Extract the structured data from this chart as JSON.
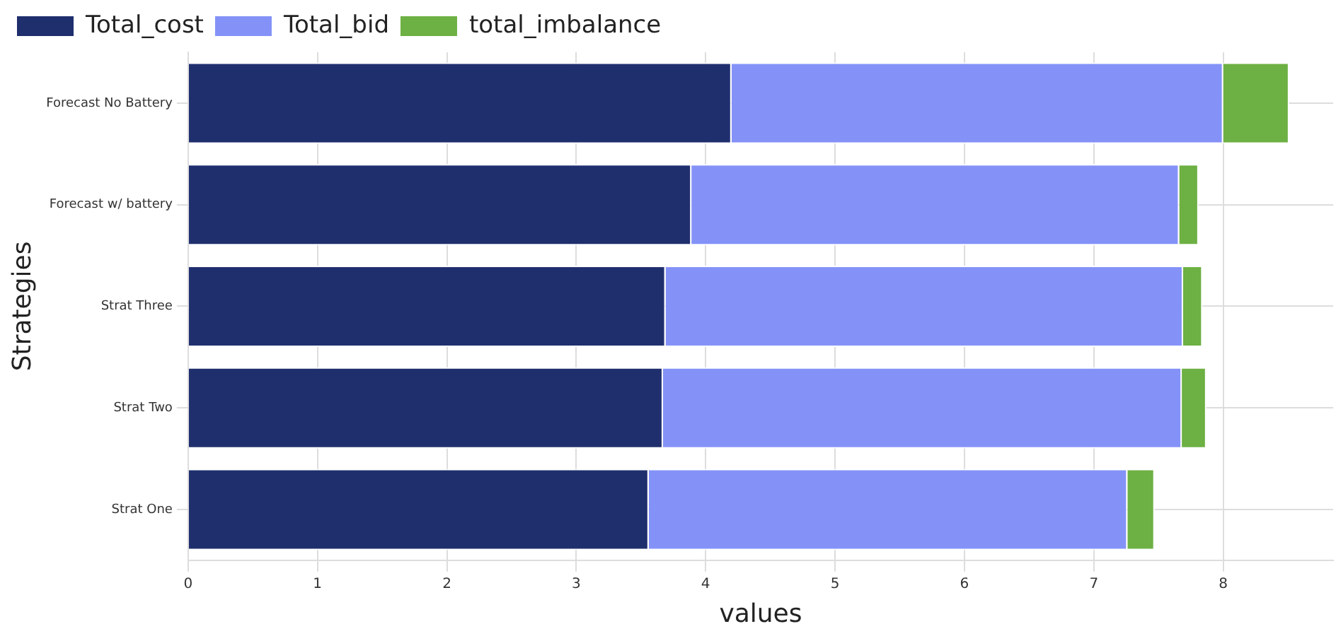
{
  "chart_data": {
    "type": "bar",
    "orientation": "horizontal",
    "stacked": true,
    "xlabel": "values",
    "ylabel": "Strategies",
    "categories": [
      "Forecast No Battery",
      "Forecast w/ battery",
      "Strat Three",
      "Strat Two",
      "Strat One"
    ],
    "series": [
      {
        "name": "Total_cost",
        "color": "#1f2f6e",
        "values": [
          4.2,
          3.89,
          3.69,
          3.67,
          3.56
        ]
      },
      {
        "name": "Total_bid",
        "color": "#8492f8",
        "values": [
          3.8,
          3.77,
          4.0,
          4.01,
          3.7
        ]
      },
      {
        "name": "total_imbalance",
        "color": "#6db043",
        "values": [
          0.51,
          0.15,
          0.15,
          0.19,
          0.21
        ]
      }
    ],
    "xlim": [
      0,
      8.85
    ],
    "xticks": [
      0,
      1,
      2,
      3,
      4,
      5,
      6,
      7,
      8
    ],
    "grid": true,
    "legend": "top left"
  }
}
